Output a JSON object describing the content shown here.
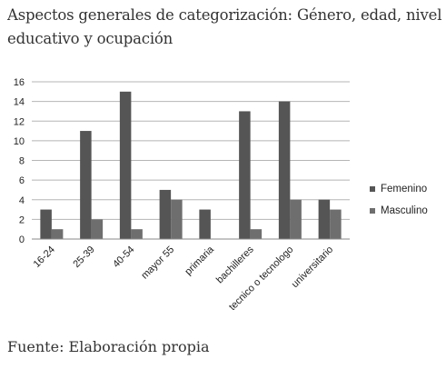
{
  "title": "Aspectos generales de categorización: Género, edad, nivel educativo y ocupación",
  "source": "Fuente: Elaboración propia",
  "chart_data": {
    "type": "bar",
    "categories": [
      "16-24",
      "25-39",
      "40-54",
      "mayor 55",
      "primaria",
      "bachilleres",
      "tecnico o tecnologo",
      "universitario"
    ],
    "series": [
      {
        "name": "Femenino",
        "values": [
          3,
          11,
          15,
          5,
          3,
          13,
          14,
          4
        ],
        "color": "#555555"
      },
      {
        "name": "Masculino",
        "values": [
          1,
          2,
          1,
          4,
          0,
          1,
          4,
          3
        ],
        "color": "#6e6e6e"
      }
    ],
    "ylim": [
      0,
      16
    ],
    "yticks": [
      0,
      2,
      4,
      6,
      8,
      10,
      12,
      14,
      16
    ],
    "grid": true,
    "legend_position": "right"
  }
}
